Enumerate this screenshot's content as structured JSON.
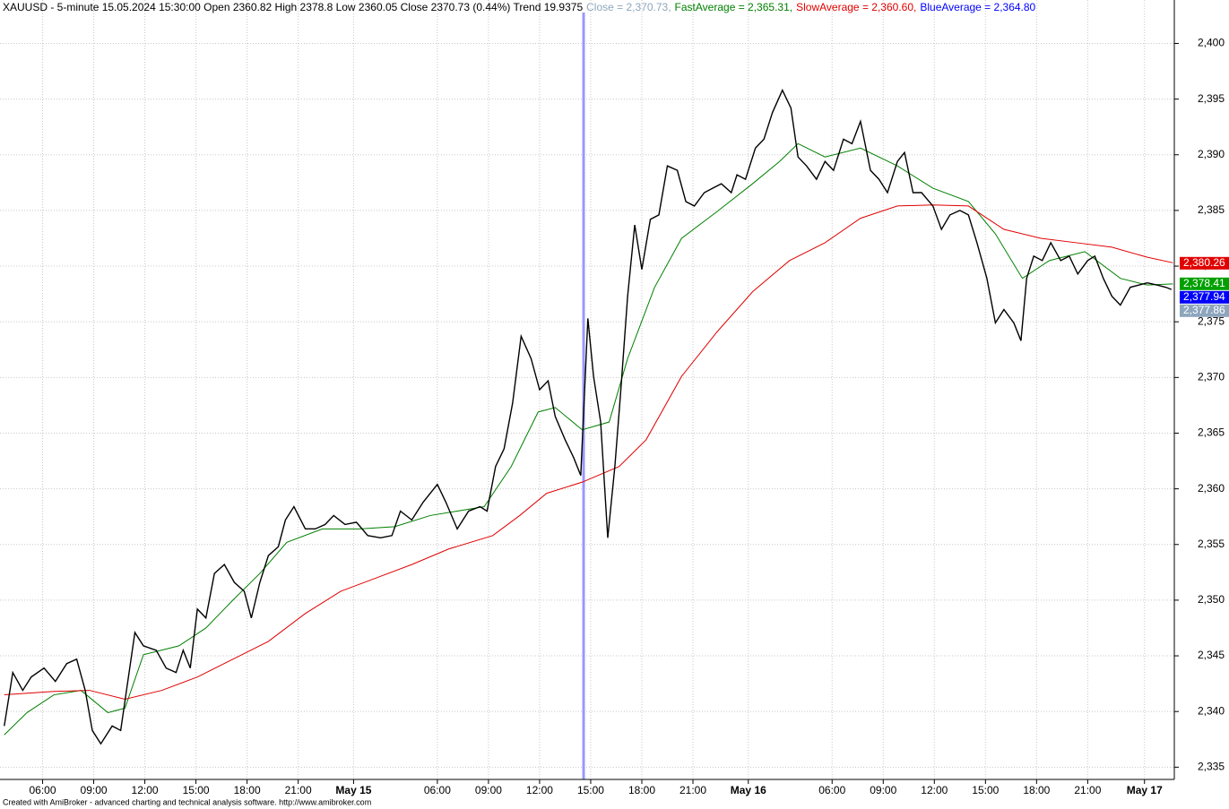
{
  "chart_data": {
    "type": "line",
    "title": "XAUUSD - 5-minute 15.05.2024 15:30:00 Open 2360.82 High 2378.8 Low 2360.05 Close 2370.73 (0.44%) Trend 19.9375",
    "footer": "Created with AmiBroker - advanced charting and technical analysis software. http://www.amibroker.com",
    "xlim": [
      -3,
      824
    ],
    "ylim": [
      2333.9,
      2403.9
    ],
    "grid": true,
    "cursor_x": 408,
    "cursor_color": "#9999ff",
    "xticks": [
      {
        "value": 27,
        "label": "06:00"
      },
      {
        "value": 63,
        "label": "09:00"
      },
      {
        "value": 99,
        "label": "12:00"
      },
      {
        "value": 135,
        "label": "15:00"
      },
      {
        "value": 171,
        "label": "18:00"
      },
      {
        "value": 207,
        "label": "21:00"
      },
      {
        "value": 246,
        "label": "May 15",
        "bold": true
      },
      {
        "value": 305,
        "label": "06:00"
      },
      {
        "value": 341,
        "label": "09:00"
      },
      {
        "value": 377,
        "label": "12:00"
      },
      {
        "value": 413,
        "label": "15:00"
      },
      {
        "value": 449,
        "label": "18:00"
      },
      {
        "value": 485,
        "label": "21:00"
      },
      {
        "value": 524,
        "label": "May 16",
        "bold": true
      },
      {
        "value": 583,
        "label": "06:00"
      },
      {
        "value": 619,
        "label": "09:00"
      },
      {
        "value": 655,
        "label": "12:00"
      },
      {
        "value": 691,
        "label": "15:00"
      },
      {
        "value": 727,
        "label": "18:00"
      },
      {
        "value": 763,
        "label": "21:00"
      },
      {
        "value": 803,
        "label": "May 17",
        "bold": true
      }
    ],
    "yticks": [
      {
        "value": 2335,
        "label": "2,335"
      },
      {
        "value": 2340,
        "label": "2,340"
      },
      {
        "value": 2345,
        "label": "2,345"
      },
      {
        "value": 2350,
        "label": "2,350"
      },
      {
        "value": 2355,
        "label": "2,355"
      },
      {
        "value": 2360,
        "label": "2,360"
      },
      {
        "value": 2365,
        "label": "2,365"
      },
      {
        "value": 2370,
        "label": "2,370"
      },
      {
        "value": 2375,
        "label": "2,375"
      },
      {
        "value": 2380,
        "label": "2,380"
      },
      {
        "value": 2385,
        "label": "2,385"
      },
      {
        "value": 2390,
        "label": "2,390"
      },
      {
        "value": 2395,
        "label": "2,395"
      },
      {
        "value": 2400,
        "label": "2,400"
      }
    ],
    "series": [
      {
        "name": "Close",
        "readout": " = 2,370.73,",
        "color": "#000000",
        "readout_color": "#8ea6bd",
        "width": 1.4,
        "tag": {
          "value": 2377.86,
          "label": "2,377.86"
        },
        "tag_color": "#8ea6bd",
        "x": [
          0,
          6,
          13,
          19,
          28,
          36,
          44,
          51,
          57,
          62,
          68,
          76,
          82,
          87,
          92,
          98,
          107,
          114,
          121,
          126,
          131,
          136,
          142,
          148,
          155,
          162,
          169,
          174,
          180,
          186,
          193,
          198,
          204,
          212,
          219,
          226,
          232,
          240,
          248,
          256,
          265,
          273,
          279,
          287,
          295,
          305,
          311,
          319,
          327,
          335,
          340,
          346,
          352,
          358,
          364,
          371,
          377,
          383,
          388,
          395,
          401,
          406,
          411,
          415,
          420,
          425,
          430,
          434,
          439,
          444,
          449,
          455,
          461,
          467,
          474,
          480,
          486,
          493,
          499,
          505,
          512,
          516,
          522,
          529,
          535,
          541,
          548,
          554,
          559,
          565,
          572,
          578,
          584,
          591,
          597,
          603,
          610,
          616,
          622,
          629,
          634,
          640,
          646,
          654,
          660,
          666,
          673,
          679,
          685,
          692,
          698,
          704,
          711,
          716,
          720,
          725,
          731,
          737,
          744,
          750,
          756,
          763,
          768,
          774,
          780,
          786,
          793,
          799,
          805,
          812,
          818,
          822
        ],
        "values": [
          2338.7,
          2343.5,
          2341.9,
          2343.1,
          2343.9,
          2342.7,
          2344.3,
          2344.7,
          2341.9,
          2338.3,
          2337.1,
          2338.7,
          2338.3,
          2342.7,
          2347.1,
          2345.9,
          2345.5,
          2343.9,
          2343.5,
          2345.5,
          2343.9,
          2349.2,
          2348.4,
          2352.4,
          2353.2,
          2351.6,
          2350.8,
          2348.4,
          2351.6,
          2354.0,
          2354.8,
          2357.2,
          2358.4,
          2356.4,
          2356.4,
          2356.8,
          2357.6,
          2356.8,
          2357.0,
          2355.8,
          2355.6,
          2355.8,
          2358.0,
          2357.2,
          2358.8,
          2360.4,
          2358.8,
          2356.4,
          2358.0,
          2358.4,
          2358.0,
          2362.0,
          2363.6,
          2367.7,
          2373.7,
          2371.7,
          2368.9,
          2369.7,
          2366.5,
          2364.4,
          2362.8,
          2361.2,
          2375.3,
          2370.1,
          2366.0,
          2355.6,
          2362.0,
          2368.5,
          2377.3,
          2383.7,
          2379.7,
          2384.2,
          2384.6,
          2389.0,
          2388.6,
          2385.8,
          2385.4,
          2386.6,
          2387.0,
          2387.4,
          2386.6,
          2388.2,
          2387.8,
          2390.6,
          2391.4,
          2393.8,
          2395.8,
          2394.2,
          2389.8,
          2389.0,
          2387.8,
          2389.4,
          2388.6,
          2391.4,
          2391.0,
          2393.0,
          2388.6,
          2387.8,
          2386.6,
          2389.4,
          2390.2,
          2386.6,
          2386.6,
          2385.4,
          2383.3,
          2384.6,
          2385.0,
          2384.6,
          2382.1,
          2378.9,
          2374.9,
          2376.1,
          2374.9,
          2373.3,
          2378.9,
          2380.9,
          2380.5,
          2382.1,
          2380.5,
          2380.9,
          2379.3,
          2380.5,
          2380.9,
          2378.9,
          2377.3,
          2376.5,
          2378.1,
          2378.3,
          2378.5,
          2378.3,
          2378.1,
          2377.9
        ]
      },
      {
        "name": "FastAverage",
        "readout": " = 2,365.31,",
        "color": "#008000",
        "readout_color": "#008000",
        "width": 1,
        "tag": {
          "value": 2378.41,
          "label": "2,378.41"
        },
        "tag_color": "#00a000",
        "x": [
          0,
          16,
          35,
          54,
          73,
          85,
          98,
          123,
          142,
          161,
          180,
          199,
          224,
          250,
          275,
          300,
          319,
          338,
          357,
          376,
          388,
          407,
          426,
          439,
          458,
          477,
          502,
          527,
          546,
          559,
          578,
          603,
          629,
          654,
          679,
          698,
          717,
          736,
          761,
          786,
          805,
          823
        ],
        "values": [
          2337.9,
          2339.9,
          2341.5,
          2341.9,
          2339.9,
          2340.3,
          2345.1,
          2345.9,
          2347.5,
          2350.0,
          2352.4,
          2355.2,
          2356.4,
          2356.4,
          2356.6,
          2357.6,
          2358.0,
          2358.4,
          2362.0,
          2366.9,
          2367.3,
          2365.3,
          2366.0,
          2371.7,
          2378.1,
          2382.5,
          2384.9,
          2387.4,
          2389.4,
          2391.0,
          2389.8,
          2390.6,
          2389.0,
          2387.0,
          2385.8,
          2382.9,
          2378.9,
          2380.5,
          2381.3,
          2378.9,
          2378.3,
          2378.4
        ]
      },
      {
        "name": "SlowAverage",
        "readout": " = 2,360.60,",
        "color": "#e00000",
        "readout_color": "#e00000",
        "width": 1,
        "tag": {
          "value": 2380.26,
          "label": "2,380.26"
        },
        "tag_color": "#e00000",
        "x": [
          0,
          35,
          60,
          85,
          111,
          136,
          161,
          186,
          212,
          237,
          262,
          287,
          313,
          344,
          363,
          382,
          407,
          433,
          452,
          477,
          502,
          527,
          553,
          578,
          603,
          629,
          654,
          679,
          704,
          730,
          755,
          780,
          805,
          823
        ],
        "values": [
          2341.5,
          2341.8,
          2341.9,
          2341.1,
          2341.9,
          2343.1,
          2344.7,
          2346.3,
          2348.8,
          2350.8,
          2352.0,
          2353.2,
          2354.6,
          2355.8,
          2357.6,
          2359.6,
          2360.6,
          2362.0,
          2364.4,
          2370.1,
          2374.1,
          2377.7,
          2380.5,
          2382.1,
          2384.3,
          2385.4,
          2385.5,
          2385.4,
          2383.3,
          2382.5,
          2382.1,
          2381.7,
          2380.8,
          2380.3
        ]
      },
      {
        "name": "BlueAverage",
        "readout": " = 2,364.80",
        "color": "#0000ff",
        "readout_color": "#0000ff",
        "tag": {
          "value": 2377.94,
          "label": "2,377.94"
        },
        "tag_color": "#0000ff"
      }
    ]
  }
}
